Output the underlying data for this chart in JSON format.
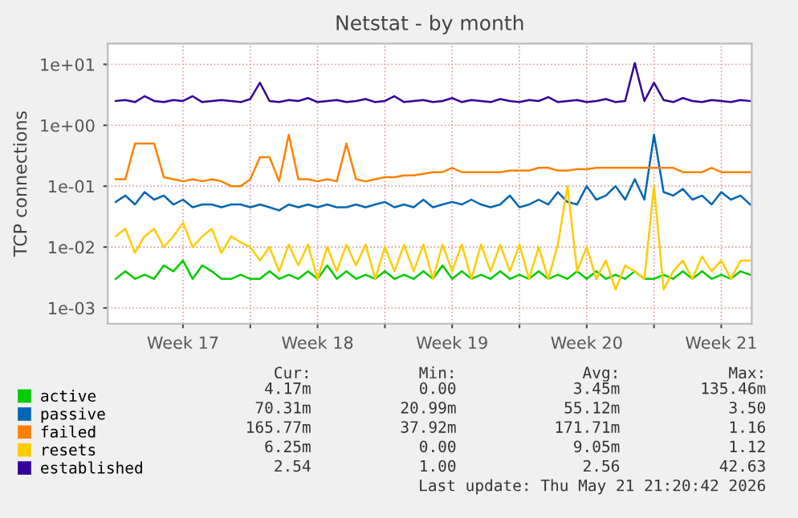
{
  "chart_data": {
    "type": "line",
    "title": "Netstat - by month",
    "ylabel": "TCP connections",
    "log": "y",
    "grid": true,
    "legend": "bottom left",
    "ylim": [
      0.00055,
      22
    ],
    "yticks": [
      {
        "value": 0.001,
        "label": "1e-03"
      },
      {
        "value": 0.01,
        "label": "1e-02"
      },
      {
        "value": 0.1,
        "label": "1e-01"
      },
      {
        "value": 1,
        "label": "1e+00"
      },
      {
        "value": 10,
        "label": "1e+01"
      }
    ],
    "xlim": [
      "2026-04-19T14:00",
      "2026-05-23T02:00"
    ],
    "xticks": [
      {
        "value": "2026-04-23T12:00",
        "label": "Week 17"
      },
      {
        "value": "2026-04-27T00:00",
        "label": null
      },
      {
        "value": "2026-04-30T12:00",
        "label": "Week 18"
      },
      {
        "value": "2026-05-04T00:00",
        "label": null
      },
      {
        "value": "2026-05-07T12:00",
        "label": "Week 19"
      },
      {
        "value": "2026-05-11T00:00",
        "label": null
      },
      {
        "value": "2026-05-14T12:00",
        "label": "Week 20"
      },
      {
        "value": "2026-05-18T00:00",
        "label": null
      },
      {
        "value": "2026-05-21T12:00",
        "label": "Week 21"
      }
    ],
    "x": [
      "2026-04-20T00:00",
      "2026-04-20T12:00",
      "2026-04-21T00:00",
      "2026-04-21T12:00",
      "2026-04-22T00:00",
      "2026-04-22T12:00",
      "2026-04-23T00:00",
      "2026-04-23T12:00",
      "2026-04-24T00:00",
      "2026-04-24T12:00",
      "2026-04-25T00:00",
      "2026-04-25T12:00",
      "2026-04-26T00:00",
      "2026-04-26T12:00",
      "2026-04-27T00:00",
      "2026-04-27T12:00",
      "2026-04-28T00:00",
      "2026-04-28T12:00",
      "2026-04-29T00:00",
      "2026-04-29T12:00",
      "2026-04-30T00:00",
      "2026-04-30T12:00",
      "2026-05-01T00:00",
      "2026-05-01T12:00",
      "2026-05-02T00:00",
      "2026-05-02T12:00",
      "2026-05-03T00:00",
      "2026-05-03T12:00",
      "2026-05-04T00:00",
      "2026-05-04T12:00",
      "2026-05-05T00:00",
      "2026-05-05T12:00",
      "2026-05-06T00:00",
      "2026-05-06T12:00",
      "2026-05-07T00:00",
      "2026-05-07T12:00",
      "2026-05-08T00:00",
      "2026-05-08T12:00",
      "2026-05-09T00:00",
      "2026-05-09T12:00",
      "2026-05-10T00:00",
      "2026-05-10T12:00",
      "2026-05-11T00:00",
      "2026-05-11T12:00",
      "2026-05-12T00:00",
      "2026-05-12T12:00",
      "2026-05-13T00:00",
      "2026-05-13T12:00",
      "2026-05-14T00:00",
      "2026-05-14T12:00",
      "2026-05-15T00:00",
      "2026-05-15T12:00",
      "2026-05-16T00:00",
      "2026-05-16T12:00",
      "2026-05-17T00:00",
      "2026-05-17T12:00",
      "2026-05-18T00:00",
      "2026-05-18T12:00",
      "2026-05-19T00:00",
      "2026-05-19T12:00",
      "2026-05-20T00:00",
      "2026-05-20T12:00",
      "2026-05-21T00:00",
      "2026-05-21T12:00",
      "2026-05-22T00:00",
      "2026-05-22T12:00",
      "2026-05-23T00:00"
    ],
    "series": [
      {
        "name": "active",
        "color": "#00cc00",
        "values": [
          0.003,
          0.004,
          0.003,
          0.0035,
          0.003,
          0.005,
          0.004,
          0.006,
          0.003,
          0.005,
          0.004,
          0.003,
          0.003,
          0.0035,
          0.003,
          0.003,
          0.004,
          0.003,
          0.0035,
          0.003,
          0.004,
          0.003,
          0.005,
          0.003,
          0.004,
          0.003,
          0.0035,
          0.003,
          0.004,
          0.003,
          0.0035,
          0.003,
          0.004,
          0.003,
          0.005,
          0.003,
          0.004,
          0.003,
          0.0035,
          0.003,
          0.004,
          0.003,
          0.0035,
          0.003,
          0.004,
          0.003,
          0.0035,
          0.003,
          0.004,
          0.003,
          0.004,
          0.003,
          0.0035,
          0.003,
          0.004,
          0.003,
          0.003,
          0.0035,
          0.003,
          0.004,
          0.003,
          0.004,
          0.003,
          0.0035,
          0.003,
          0.004,
          0.0035
        ]
      },
      {
        "name": "passive",
        "color": "#0066b3",
        "values": [
          0.055,
          0.07,
          0.05,
          0.08,
          0.06,
          0.07,
          0.05,
          0.06,
          0.045,
          0.05,
          0.05,
          0.045,
          0.05,
          0.05,
          0.045,
          0.05,
          0.045,
          0.04,
          0.05,
          0.045,
          0.05,
          0.045,
          0.05,
          0.045,
          0.045,
          0.05,
          0.045,
          0.05,
          0.055,
          0.045,
          0.05,
          0.045,
          0.06,
          0.045,
          0.05,
          0.055,
          0.05,
          0.06,
          0.05,
          0.045,
          0.05,
          0.07,
          0.045,
          0.05,
          0.06,
          0.05,
          0.08,
          0.055,
          0.05,
          0.1,
          0.06,
          0.07,
          0.1,
          0.06,
          0.13,
          0.06,
          0.7,
          0.08,
          0.07,
          0.09,
          0.06,
          0.07,
          0.05,
          0.08,
          0.06,
          0.07,
          0.05
        ]
      },
      {
        "name": "failed",
        "color": "#ff8000",
        "values": [
          0.13,
          0.13,
          0.5,
          0.5,
          0.5,
          0.14,
          0.13,
          0.12,
          0.13,
          0.12,
          0.13,
          0.12,
          0.1,
          0.1,
          0.13,
          0.3,
          0.3,
          0.12,
          0.7,
          0.13,
          0.13,
          0.12,
          0.13,
          0.12,
          0.5,
          0.13,
          0.12,
          0.13,
          0.14,
          0.14,
          0.15,
          0.15,
          0.16,
          0.17,
          0.17,
          0.2,
          0.17,
          0.17,
          0.17,
          0.17,
          0.17,
          0.18,
          0.18,
          0.18,
          0.2,
          0.2,
          0.18,
          0.18,
          0.19,
          0.19,
          0.2,
          0.2,
          0.2,
          0.2,
          0.2,
          0.2,
          0.2,
          0.2,
          0.2,
          0.17,
          0.17,
          0.17,
          0.2,
          0.17,
          0.17,
          0.17,
          0.17
        ]
      },
      {
        "name": "resets",
        "color": "#ffcc00",
        "values": [
          0.015,
          0.02,
          0.008,
          0.015,
          0.02,
          0.01,
          0.015,
          0.025,
          0.01,
          0.015,
          0.02,
          0.008,
          0.015,
          0.012,
          0.01,
          0.006,
          0.01,
          0.004,
          0.011,
          0.005,
          0.011,
          0.003,
          0.01,
          0.004,
          0.011,
          0.005,
          0.011,
          0.003,
          0.01,
          0.004,
          0.011,
          0.004,
          0.011,
          0.003,
          0.011,
          0.004,
          0.011,
          0.003,
          0.011,
          0.004,
          0.011,
          0.004,
          0.011,
          0.003,
          0.01,
          0.003,
          0.011,
          0.1,
          0.004,
          0.01,
          0.003,
          0.006,
          0.002,
          0.005,
          0.004,
          0.003,
          0.1,
          0.002,
          0.004,
          0.006,
          0.003,
          0.007,
          0.004,
          0.006,
          0.003,
          0.006,
          0.006
        ]
      },
      {
        "name": "established",
        "color": "#330099",
        "values": [
          2.5,
          2.6,
          2.4,
          3.0,
          2.5,
          2.4,
          2.6,
          2.5,
          3.0,
          2.4,
          2.5,
          2.6,
          2.5,
          2.4,
          2.7,
          5.0,
          2.5,
          2.4,
          2.6,
          2.5,
          2.8,
          2.4,
          2.5,
          2.6,
          2.4,
          2.5,
          2.7,
          2.4,
          2.5,
          3.0,
          2.4,
          2.5,
          2.6,
          2.4,
          2.5,
          2.8,
          2.4,
          2.6,
          2.5,
          2.4,
          2.7,
          2.5,
          2.4,
          2.6,
          2.5,
          2.9,
          2.4,
          2.5,
          2.6,
          2.4,
          2.5,
          2.7,
          2.4,
          2.5,
          10.5,
          2.5,
          5.0,
          2.6,
          2.4,
          2.8,
          2.5,
          2.4,
          2.6,
          2.5,
          2.4,
          2.6,
          2.5
        ]
      }
    ],
    "annotations": [
      "Cur:",
      "Min:",
      "Avg:",
      "Max:",
      "4.17m",
      "0.00",
      "3.45m",
      "135.46m",
      "70.31m",
      "20.99m",
      "55.12m",
      "3.50",
      "165.77m",
      "37.92m",
      "171.71m",
      "1.16",
      "6.25m",
      "0.00",
      "9.05m",
      "1.12",
      "2.54",
      "1.00",
      "2.56",
      "42.63",
      "Last update: Thu May 21 21:20:42 2026"
    ]
  }
}
